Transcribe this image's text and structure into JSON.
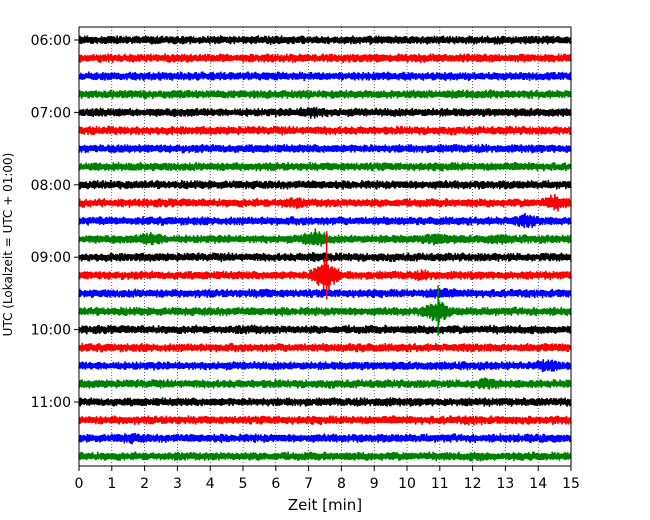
{
  "chart_data": {
    "type": "line",
    "subtype": "seismogram-helicorder",
    "title": "",
    "xlabel": "Zeit  [min]",
    "ylabel": "UTC (Lokalzeit = UTC + 01:00)",
    "xlim": [
      0,
      15
    ],
    "xticks": [
      "0",
      "1",
      "2",
      "3",
      "4",
      "5",
      "6",
      "7",
      "8",
      "9",
      "10",
      "11",
      "12",
      "13",
      "14",
      "15"
    ],
    "yticks": [
      "06:00",
      "07:00",
      "08:00",
      "09:00",
      "10:00",
      "11:00"
    ],
    "grid": "vertical-dotted",
    "trace_colors": [
      "#000000",
      "#ff0000",
      "#0000ff",
      "#008000"
    ],
    "traces": [
      {
        "start": "06:00",
        "events": []
      },
      {
        "start": "06:15",
        "events": []
      },
      {
        "start": "06:30",
        "events": []
      },
      {
        "start": "06:45",
        "events": []
      },
      {
        "start": "07:00",
        "events": [
          {
            "t": 7.1,
            "amp": 1.4
          }
        ]
      },
      {
        "start": "07:15",
        "events": []
      },
      {
        "start": "07:30",
        "events": []
      },
      {
        "start": "07:45",
        "events": []
      },
      {
        "start": "08:00",
        "events": []
      },
      {
        "start": "08:15",
        "events": [
          {
            "t": 6.5,
            "amp": 1.3
          },
          {
            "t": 14.5,
            "amp": 1.6
          }
        ]
      },
      {
        "start": "08:30",
        "events": [
          {
            "t": 13.6,
            "amp": 1.5
          }
        ]
      },
      {
        "start": "08:45",
        "events": [
          {
            "t": 2.2,
            "amp": 1.5
          },
          {
            "t": 7.2,
            "amp": 1.8
          },
          {
            "t": 10.9,
            "amp": 1.4
          },
          {
            "t": 12.8,
            "amp": 1.2
          }
        ]
      },
      {
        "start": "09:00",
        "events": [
          {
            "t": 7.3,
            "amp": 1.2
          }
        ]
      },
      {
        "start": "09:15",
        "events": [
          {
            "t": 7.5,
            "amp": 3.0
          },
          {
            "t": 10.5,
            "amp": 1.2
          }
        ]
      },
      {
        "start": "09:30",
        "events": [
          {
            "t": 5.6,
            "amp": 1.1
          },
          {
            "t": 11.0,
            "amp": 1.3
          }
        ]
      },
      {
        "start": "09:45",
        "events": [
          {
            "t": 10.9,
            "amp": 2.2
          }
        ]
      },
      {
        "start": "10:00",
        "events": [
          {
            "t": 5.3,
            "amp": 1.1
          }
        ]
      },
      {
        "start": "10:15",
        "events": [
          {
            "t": 8.6,
            "amp": 1.1
          }
        ]
      },
      {
        "start": "10:30",
        "events": [
          {
            "t": 14.3,
            "amp": 1.4
          }
        ]
      },
      {
        "start": "10:45",
        "events": [
          {
            "t": 12.4,
            "amp": 1.3
          }
        ]
      },
      {
        "start": "11:00",
        "events": [
          {
            "t": 9.3,
            "amp": 1.1
          }
        ]
      },
      {
        "start": "11:15",
        "events": [
          {
            "t": 12.0,
            "amp": 1.1
          }
        ]
      },
      {
        "start": "11:30",
        "events": [
          {
            "t": 1.6,
            "amp": 1.2
          }
        ]
      },
      {
        "start": "11:45",
        "events": [
          {
            "t": 12.2,
            "amp": 1.1
          }
        ]
      }
    ],
    "spike": {
      "t": 7.55,
      "from_trace": 11,
      "to_trace": 14
    },
    "spike2": {
      "t": 10.95,
      "from_trace": 14,
      "to_trace": 16
    }
  }
}
